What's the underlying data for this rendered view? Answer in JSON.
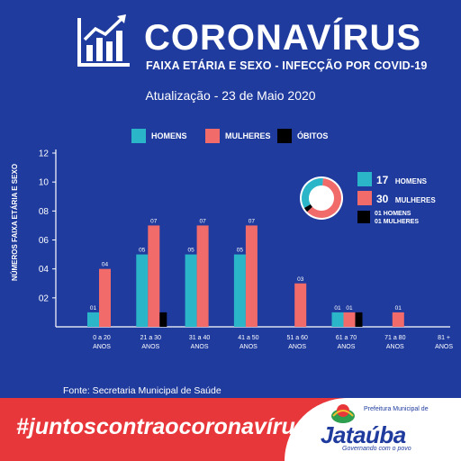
{
  "header": {
    "title": "CORONAVÍRUS",
    "subtitle": "FAIXA ETÁRIA E SEXO - INFECÇÃO POR COVID-19",
    "update": "Atualização - 23 de Maio 2020"
  },
  "legend": {
    "men": "HOMENS",
    "women": "MULHERES",
    "deaths": "ÓBITOS"
  },
  "colors": {
    "background": "#1f3b9e",
    "men": "#2bb5c9",
    "women": "#f26b6b",
    "deaths": "#000000",
    "banner": "#e8373b"
  },
  "summary": {
    "men": {
      "count": "17",
      "label": "HOMENS"
    },
    "women": {
      "count": "30",
      "label": "MULHERES"
    },
    "deaths_men": "01 HOMENS",
    "deaths_women": "01 MULHERES"
  },
  "chart_data": {
    "type": "bar",
    "ylabel": "NÚMEROS FAIXA ETÁRIA E SEXO",
    "ylim": [
      0,
      12
    ],
    "yticks": [
      "02",
      "04",
      "06",
      "08",
      "10",
      "12"
    ],
    "categories": [
      [
        "0 a 20",
        "ANOS"
      ],
      [
        "21 a 30",
        "ANOS"
      ],
      [
        "31 a 40",
        "ANOS"
      ],
      [
        "41 a 50",
        "ANOS"
      ],
      [
        "51 a 60",
        "ANOS"
      ],
      [
        "61 a 70",
        "ANOS"
      ],
      [
        "71 a 80",
        "ANOS"
      ],
      [
        "81 +",
        "ANOS"
      ]
    ],
    "series": [
      {
        "name": "HOMENS",
        "values": [
          1,
          5,
          5,
          5,
          0,
          1,
          0,
          0
        ],
        "labels": [
          "01",
          "05",
          "05",
          "05",
          "",
          "01",
          "",
          ""
        ]
      },
      {
        "name": "MULHERES",
        "values": [
          4,
          7,
          7,
          7,
          3,
          1,
          1,
          0
        ],
        "labels": [
          "04",
          "07",
          "07",
          "07",
          "03",
          "01",
          "01",
          ""
        ]
      },
      {
        "name": "ÓBITOS",
        "values": [
          0,
          1,
          0,
          0,
          0,
          1,
          0,
          0
        ],
        "labels": [
          "",
          "",
          "",
          "",
          "",
          "",
          "",
          ""
        ]
      }
    ],
    "donut": {
      "HOMENS": 17,
      "MULHERES": 30,
      "ÓBITOS": 2
    }
  },
  "footer": {
    "source": "Fonte: Secretaria Municipal de Saúde",
    "hashtag": "#juntoscontraocoronavírus",
    "logo_prefix": "Prefeitura Municipal de",
    "logo_name": "Jataúba",
    "logo_tagline": "Governando com o povo"
  }
}
